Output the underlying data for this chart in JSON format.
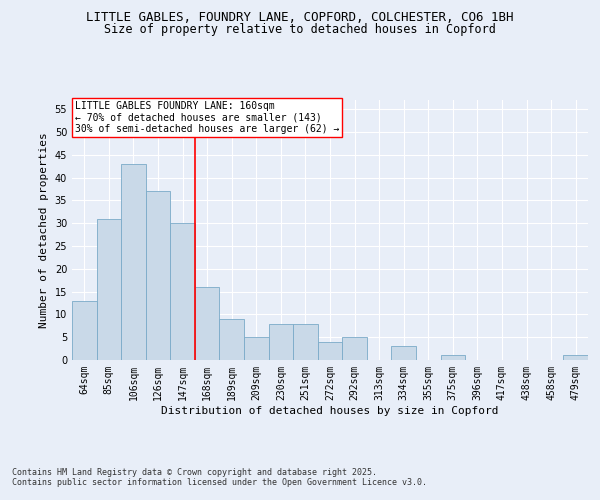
{
  "title_line1": "LITTLE GABLES, FOUNDRY LANE, COPFORD, COLCHESTER, CO6 1BH",
  "title_line2": "Size of property relative to detached houses in Copford",
  "xlabel": "Distribution of detached houses by size in Copford",
  "ylabel": "Number of detached properties",
  "categories": [
    "64sqm",
    "85sqm",
    "106sqm",
    "126sqm",
    "147sqm",
    "168sqm",
    "189sqm",
    "209sqm",
    "230sqm",
    "251sqm",
    "272sqm",
    "292sqm",
    "313sqm",
    "334sqm",
    "355sqm",
    "375sqm",
    "396sqm",
    "417sqm",
    "438sqm",
    "458sqm",
    "479sqm"
  ],
  "values": [
    13,
    31,
    43,
    37,
    30,
    16,
    9,
    5,
    8,
    8,
    4,
    5,
    0,
    3,
    0,
    1,
    0,
    0,
    0,
    0,
    1
  ],
  "bar_color": "#c9d9e8",
  "bar_edge_color": "#7aaac8",
  "vline_x": 4.5,
  "vline_color": "red",
  "annotation_text": "LITTLE GABLES FOUNDRY LANE: 160sqm\n← 70% of detached houses are smaller (143)\n30% of semi-detached houses are larger (62) →",
  "annotation_box_color": "white",
  "annotation_box_edge_color": "red",
  "ylim": [
    0,
    57
  ],
  "yticks": [
    0,
    5,
    10,
    15,
    20,
    25,
    30,
    35,
    40,
    45,
    50,
    55
  ],
  "background_color": "#e8eef8",
  "plot_bg_color": "#e8eef8",
  "grid_color": "white",
  "footer_text": "Contains HM Land Registry data © Crown copyright and database right 2025.\nContains public sector information licensed under the Open Government Licence v3.0.",
  "title_fontsize": 9,
  "subtitle_fontsize": 8.5,
  "axis_label_fontsize": 8,
  "tick_fontsize": 7,
  "annotation_fontsize": 7,
  "footer_fontsize": 6
}
